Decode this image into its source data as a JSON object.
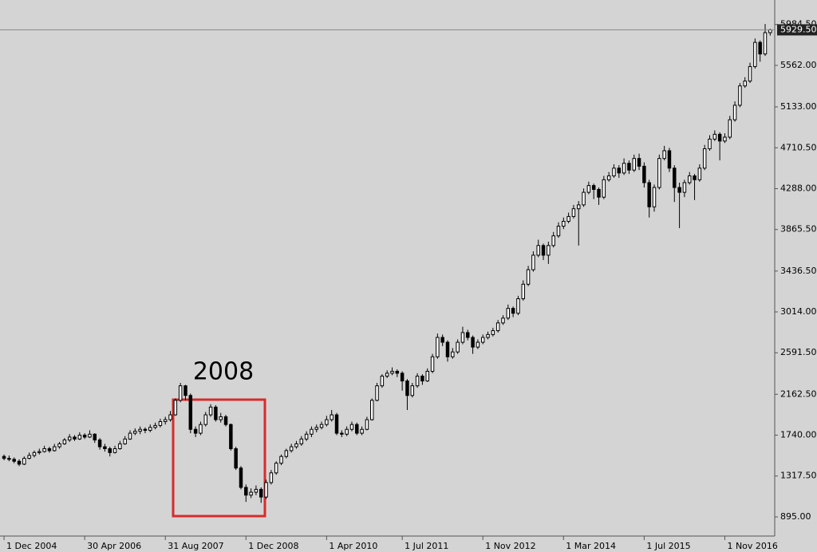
{
  "chart_data": {
    "type": "candlestick",
    "annotation": "2008",
    "up_color": "#ffffff",
    "down_color": "#000000",
    "annotation_color": "#d92b2b",
    "xlim": [
      -0.8,
      152.9
    ],
    "xticks": [
      {
        "value": 0,
        "label": "1 Dec 2004"
      },
      {
        "value": 16,
        "label": "30 Apr 2006"
      },
      {
        "value": 32,
        "label": "31 Aug 2007"
      },
      {
        "value": 48,
        "label": "1 Dec 2008"
      },
      {
        "value": 64,
        "label": "1 Apr 2010"
      },
      {
        "value": 79,
        "label": "1 Jul 2011"
      },
      {
        "value": 95,
        "label": "1 Nov 2012"
      },
      {
        "value": 111,
        "label": "1 Mar 2014"
      },
      {
        "value": 127,
        "label": "1 Jul 2015"
      },
      {
        "value": 143,
        "label": "1 Nov 2016"
      }
    ],
    "ylim": [
      697,
      6238
    ],
    "yticks": [
      {
        "value": 895,
        "label": "895.00"
      },
      {
        "value": 1317.5,
        "label": "1317.50"
      },
      {
        "value": 1740,
        "label": "1740.00"
      },
      {
        "value": 2162.5,
        "label": "2162.50"
      },
      {
        "value": 2591.5,
        "label": "2591.50"
      },
      {
        "value": 3014,
        "label": "3014.00"
      },
      {
        "value": 3436.5,
        "label": "3436.50"
      },
      {
        "value": 3865.5,
        "label": "3865.50"
      },
      {
        "value": 4288,
        "label": "4288.00"
      },
      {
        "value": 4710.5,
        "label": "4710.50"
      },
      {
        "value": 5133,
        "label": "5133.00"
      },
      {
        "value": 5562,
        "label": "5562.00"
      },
      {
        "value": 5984.5,
        "label": "5984.50"
      }
    ],
    "last_price": {
      "value": 5929.5,
      "label": "5929.50"
    },
    "ohlc": [
      [
        1520,
        1540,
        1480,
        1500
      ],
      [
        1500,
        1530,
        1470,
        1490
      ],
      [
        1490,
        1510,
        1450,
        1470
      ],
      [
        1470,
        1490,
        1420,
        1440
      ],
      [
        1440,
        1520,
        1430,
        1500
      ],
      [
        1500,
        1560,
        1490,
        1530
      ],
      [
        1530,
        1580,
        1510,
        1560
      ],
      [
        1560,
        1600,
        1540,
        1570
      ],
      [
        1570,
        1630,
        1560,
        1600
      ],
      [
        1600,
        1620,
        1560,
        1580
      ],
      [
        1580,
        1650,
        1570,
        1620
      ],
      [
        1620,
        1670,
        1600,
        1650
      ],
      [
        1650,
        1710,
        1640,
        1690
      ],
      [
        1690,
        1750,
        1670,
        1720
      ],
      [
        1720,
        1740,
        1680,
        1700
      ],
      [
        1700,
        1770,
        1690,
        1740
      ],
      [
        1740,
        1760,
        1700,
        1720
      ],
      [
        1720,
        1790,
        1710,
        1750
      ],
      [
        1750,
        1760,
        1660,
        1690
      ],
      [
        1690,
        1710,
        1590,
        1620
      ],
      [
        1620,
        1650,
        1570,
        1600
      ],
      [
        1600,
        1620,
        1520,
        1560
      ],
      [
        1560,
        1630,
        1550,
        1600
      ],
      [
        1600,
        1680,
        1590,
        1650
      ],
      [
        1650,
        1730,
        1640,
        1700
      ],
      [
        1700,
        1790,
        1690,
        1760
      ],
      [
        1760,
        1810,
        1740,
        1780
      ],
      [
        1780,
        1830,
        1750,
        1800
      ],
      [
        1800,
        1820,
        1760,
        1790
      ],
      [
        1790,
        1850,
        1770,
        1820
      ],
      [
        1820,
        1870,
        1800,
        1840
      ],
      [
        1840,
        1910,
        1820,
        1880
      ],
      [
        1880,
        1930,
        1850,
        1900
      ],
      [
        1900,
        1990,
        1880,
        1950
      ],
      [
        1950,
        2120,
        1940,
        2100
      ],
      [
        2100,
        2280,
        2080,
        2250
      ],
      [
        2250,
        2260,
        2100,
        2150
      ],
      [
        2150,
        2170,
        1760,
        1800
      ],
      [
        1800,
        1830,
        1720,
        1760
      ],
      [
        1760,
        1880,
        1740,
        1850
      ],
      [
        1850,
        1980,
        1830,
        1950
      ],
      [
        1950,
        2060,
        1930,
        2030
      ],
      [
        2030,
        2050,
        1880,
        1900
      ],
      [
        1900,
        1970,
        1870,
        1930
      ],
      [
        1930,
        1950,
        1830,
        1850
      ],
      [
        1850,
        1860,
        1580,
        1600
      ],
      [
        1600,
        1620,
        1380,
        1400
      ],
      [
        1400,
        1420,
        1180,
        1200
      ],
      [
        1200,
        1230,
        1050,
        1120
      ],
      [
        1120,
        1190,
        1090,
        1150
      ],
      [
        1150,
        1220,
        1120,
        1180
      ],
      [
        1180,
        1200,
        1040,
        1100
      ],
      [
        1100,
        1280,
        1080,
        1250
      ],
      [
        1250,
        1380,
        1230,
        1350
      ],
      [
        1350,
        1470,
        1330,
        1450
      ],
      [
        1450,
        1540,
        1430,
        1520
      ],
      [
        1520,
        1600,
        1500,
        1580
      ],
      [
        1580,
        1650,
        1560,
        1620
      ],
      [
        1620,
        1680,
        1600,
        1650
      ],
      [
        1650,
        1730,
        1630,
        1700
      ],
      [
        1700,
        1780,
        1680,
        1750
      ],
      [
        1750,
        1830,
        1720,
        1800
      ],
      [
        1800,
        1850,
        1770,
        1820
      ],
      [
        1820,
        1880,
        1800,
        1850
      ],
      [
        1850,
        1940,
        1830,
        1900
      ],
      [
        1900,
        2000,
        1880,
        1950
      ],
      [
        1950,
        1970,
        1740,
        1760
      ],
      [
        1760,
        1790,
        1720,
        1750
      ],
      [
        1750,
        1830,
        1730,
        1800
      ],
      [
        1800,
        1880,
        1780,
        1850
      ],
      [
        1850,
        1870,
        1740,
        1760
      ],
      [
        1760,
        1830,
        1740,
        1800
      ],
      [
        1800,
        1930,
        1790,
        1900
      ],
      [
        1900,
        2120,
        1890,
        2100
      ],
      [
        2100,
        2280,
        2090,
        2250
      ],
      [
        2250,
        2370,
        2230,
        2350
      ],
      [
        2350,
        2410,
        2330,
        2380
      ],
      [
        2380,
        2440,
        2360,
        2400
      ],
      [
        2400,
        2420,
        2340,
        2380
      ],
      [
        2380,
        2400,
        2200,
        2300
      ],
      [
        2300,
        2320,
        2000,
        2150
      ],
      [
        2150,
        2280,
        2130,
        2250
      ],
      [
        2250,
        2380,
        2230,
        2350
      ],
      [
        2350,
        2370,
        2260,
        2300
      ],
      [
        2300,
        2430,
        2290,
        2400
      ],
      [
        2400,
        2580,
        2380,
        2550
      ],
      [
        2550,
        2790,
        2530,
        2750
      ],
      [
        2750,
        2780,
        2660,
        2700
      ],
      [
        2700,
        2720,
        2500,
        2550
      ],
      [
        2550,
        2640,
        2530,
        2600
      ],
      [
        2600,
        2730,
        2580,
        2700
      ],
      [
        2700,
        2860,
        2680,
        2800
      ],
      [
        2800,
        2830,
        2720,
        2750
      ],
      [
        2750,
        2770,
        2580,
        2650
      ],
      [
        2650,
        2730,
        2630,
        2700
      ],
      [
        2700,
        2780,
        2680,
        2750
      ],
      [
        2750,
        2810,
        2730,
        2780
      ],
      [
        2780,
        2850,
        2760,
        2820
      ],
      [
        2820,
        2930,
        2800,
        2900
      ],
      [
        2900,
        2980,
        2880,
        2950
      ],
      [
        2950,
        3090,
        2930,
        3050
      ],
      [
        3050,
        3070,
        2960,
        3000
      ],
      [
        3000,
        3180,
        2980,
        3150
      ],
      [
        3150,
        3340,
        3130,
        3300
      ],
      [
        3300,
        3490,
        3280,
        3450
      ],
      [
        3450,
        3640,
        3430,
        3600
      ],
      [
        3600,
        3760,
        3580,
        3700
      ],
      [
        3700,
        3720,
        3550,
        3600
      ],
      [
        3600,
        3740,
        3510,
        3700
      ],
      [
        3700,
        3840,
        3680,
        3800
      ],
      [
        3800,
        3940,
        3780,
        3900
      ],
      [
        3900,
        3990,
        3870,
        3950
      ],
      [
        3950,
        4040,
        3930,
        4000
      ],
      [
        4000,
        4120,
        3980,
        4080
      ],
      [
        4080,
        4160,
        3700,
        4120
      ],
      [
        4120,
        4290,
        4100,
        4250
      ],
      [
        4250,
        4360,
        4230,
        4320
      ],
      [
        4320,
        4340,
        4180,
        4280
      ],
      [
        4280,
        4300,
        4120,
        4200
      ],
      [
        4200,
        4420,
        4180,
        4380
      ],
      [
        4380,
        4460,
        4360,
        4420
      ],
      [
        4420,
        4540,
        4400,
        4500
      ],
      [
        4500,
        4530,
        4400,
        4450
      ],
      [
        4450,
        4600,
        4430,
        4550
      ],
      [
        4550,
        4580,
        4440,
        4480
      ],
      [
        4480,
        4640,
        4460,
        4600
      ],
      [
        4600,
        4650,
        4480,
        4520
      ],
      [
        4520,
        4560,
        4300,
        4350
      ],
      [
        4350,
        4380,
        3990,
        4100
      ],
      [
        4100,
        4330,
        4050,
        4300
      ],
      [
        4300,
        4640,
        4280,
        4600
      ],
      [
        4600,
        4730,
        4580,
        4680
      ],
      [
        4680,
        4710,
        4460,
        4500
      ],
      [
        4500,
        4530,
        4150,
        4300
      ],
      [
        4300,
        4350,
        3880,
        4250
      ],
      [
        4250,
        4380,
        4200,
        4350
      ],
      [
        4350,
        4460,
        4330,
        4420
      ],
      [
        4420,
        4440,
        4170,
        4380
      ],
      [
        4380,
        4540,
        4360,
        4500
      ],
      [
        4500,
        4740,
        4480,
        4700
      ],
      [
        4700,
        4840,
        4680,
        4800
      ],
      [
        4800,
        4890,
        4780,
        4850
      ],
      [
        4850,
        4870,
        4580,
        4780
      ],
      [
        4780,
        4860,
        4760,
        4820
      ],
      [
        4820,
        5040,
        4800,
        5000
      ],
      [
        5000,
        5190,
        4980,
        5150
      ],
      [
        5150,
        5380,
        5130,
        5350
      ],
      [
        5350,
        5440,
        5330,
        5400
      ],
      [
        5400,
        5590,
        5380,
        5550
      ],
      [
        5550,
        5840,
        5530,
        5800
      ],
      [
        5800,
        5820,
        5600,
        5680
      ],
      [
        5680,
        5990,
        5660,
        5900
      ],
      [
        5900,
        5940,
        5870,
        5929.5
      ]
    ]
  }
}
